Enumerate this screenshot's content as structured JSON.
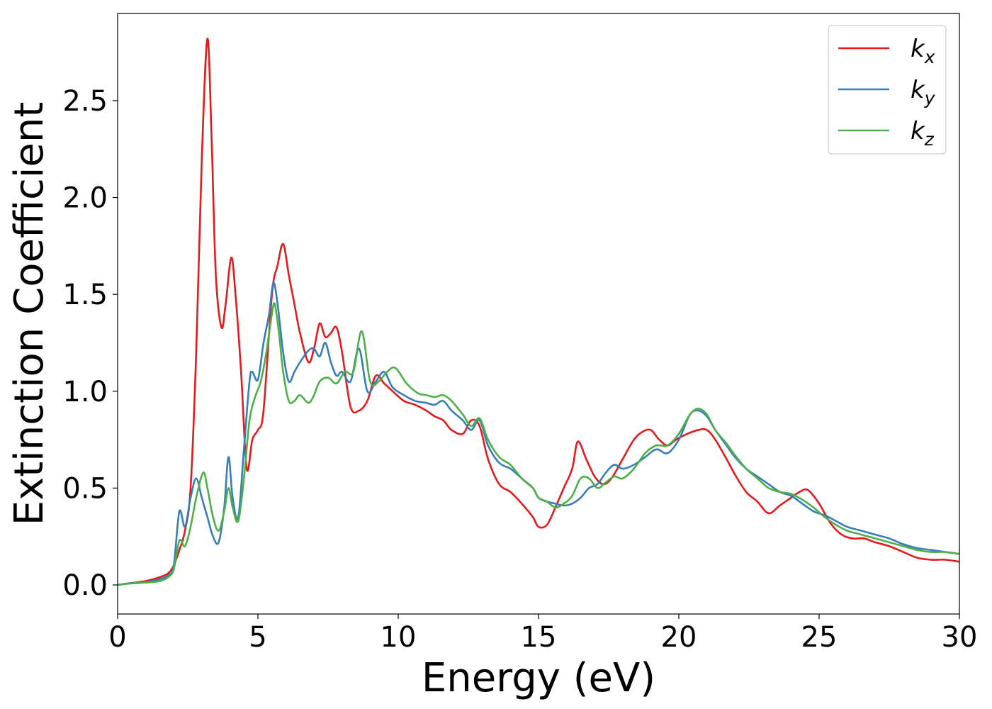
{
  "chart_data": {
    "type": "line",
    "xlabel": "Energy (eV)",
    "ylabel": "Extinction Coefficient",
    "xlim": [
      0,
      30
    ],
    "ylim": [
      -0.15,
      2.95
    ],
    "xticks": [
      "0",
      "5",
      "10",
      "15",
      "20",
      "25",
      "30"
    ],
    "yticks": [
      "0.0",
      "0.5",
      "1.0",
      "1.5",
      "2.0",
      "2.5"
    ],
    "grid": false,
    "legend_position": "top-right",
    "series": [
      {
        "name": "k",
        "subscript": "x",
        "color": "#e41a1c",
        "x": [
          0,
          0.5,
          1.0,
          1.5,
          1.8,
          2.0,
          2.2,
          2.4,
          2.6,
          2.8,
          3.0,
          3.2,
          3.35,
          3.5,
          3.7,
          3.85,
          4.05,
          4.2,
          4.4,
          4.6,
          4.8,
          5.0,
          5.2,
          5.5,
          5.7,
          5.9,
          6.1,
          6.3,
          6.5,
          6.8,
          7.0,
          7.2,
          7.4,
          7.6,
          7.8,
          8.0,
          8.3,
          8.6,
          8.9,
          9.2,
          9.5,
          9.8,
          10.2,
          10.6,
          11.0,
          11.3,
          11.6,
          11.9,
          12.3,
          12.6,
          12.9,
          13.2,
          13.6,
          14.0,
          14.4,
          14.8,
          15.0,
          15.3,
          15.6,
          15.9,
          16.2,
          16.4,
          16.7,
          17.0,
          17.3,
          17.6,
          18.0,
          18.4,
          18.7,
          19.0,
          19.3,
          19.6,
          19.9,
          20.3,
          20.7,
          21.0,
          21.3,
          21.7,
          22.0,
          22.4,
          22.8,
          23.2,
          23.6,
          24.0,
          24.3,
          24.6,
          25.0,
          25.4,
          25.8,
          26.2,
          26.6,
          27.0,
          27.5,
          28.0,
          28.5,
          29.0,
          29.5,
          30.0
        ],
        "y": [
          0.0,
          0.01,
          0.02,
          0.04,
          0.06,
          0.1,
          0.18,
          0.28,
          0.5,
          1.2,
          2.2,
          2.82,
          2.3,
          1.6,
          1.33,
          1.45,
          1.69,
          1.5,
          1.1,
          0.6,
          0.75,
          0.8,
          0.9,
          1.5,
          1.65,
          1.76,
          1.6,
          1.45,
          1.3,
          1.15,
          1.22,
          1.35,
          1.28,
          1.3,
          1.33,
          1.2,
          0.92,
          0.9,
          0.95,
          1.08,
          1.04,
          1.0,
          0.95,
          0.93,
          0.9,
          0.87,
          0.85,
          0.8,
          0.78,
          0.85,
          0.82,
          0.65,
          0.52,
          0.48,
          0.42,
          0.35,
          0.3,
          0.31,
          0.4,
          0.5,
          0.6,
          0.74,
          0.65,
          0.56,
          0.52,
          0.55,
          0.65,
          0.75,
          0.79,
          0.8,
          0.75,
          0.72,
          0.75,
          0.78,
          0.8,
          0.8,
          0.75,
          0.65,
          0.57,
          0.48,
          0.43,
          0.37,
          0.41,
          0.45,
          0.48,
          0.49,
          0.42,
          0.32,
          0.26,
          0.24,
          0.24,
          0.22,
          0.2,
          0.17,
          0.14,
          0.13,
          0.13,
          0.12
        ]
      },
      {
        "name": "k",
        "subscript": "y",
        "color": "#377eb8",
        "x": [
          0,
          0.5,
          1.0,
          1.5,
          1.8,
          2.0,
          2.2,
          2.4,
          2.6,
          2.8,
          3.0,
          3.2,
          3.4,
          3.6,
          3.8,
          3.95,
          4.1,
          4.3,
          4.5,
          4.7,
          4.8,
          5.0,
          5.2,
          5.4,
          5.55,
          5.7,
          5.9,
          6.1,
          6.3,
          6.5,
          6.8,
          7.0,
          7.2,
          7.4,
          7.6,
          7.8,
          8.0,
          8.3,
          8.6,
          8.9,
          9.2,
          9.5,
          9.8,
          10.2,
          10.6,
          11.0,
          11.3,
          11.6,
          11.9,
          12.3,
          12.6,
          12.9,
          13.2,
          13.6,
          14.0,
          14.4,
          14.8,
          15.0,
          15.3,
          15.6,
          15.9,
          16.2,
          16.5,
          16.8,
          17.1,
          17.4,
          17.7,
          18.0,
          18.4,
          18.8,
          19.2,
          19.6,
          20.0,
          20.4,
          20.7,
          21.0,
          21.3,
          21.7,
          22.0,
          22.4,
          22.8,
          23.2,
          23.6,
          24.0,
          24.4,
          24.8,
          25.2,
          25.6,
          26.0,
          26.5,
          27.0,
          27.5,
          28.0,
          28.5,
          29.0,
          29.5,
          30.0
        ],
        "y": [
          0.0,
          0.01,
          0.015,
          0.03,
          0.05,
          0.1,
          0.38,
          0.3,
          0.45,
          0.55,
          0.45,
          0.35,
          0.25,
          0.22,
          0.4,
          0.66,
          0.45,
          0.35,
          0.7,
          1.05,
          1.1,
          1.06,
          1.25,
          1.4,
          1.56,
          1.45,
          1.2,
          1.05,
          1.1,
          1.15,
          1.21,
          1.22,
          1.18,
          1.25,
          1.15,
          1.08,
          1.1,
          1.05,
          1.22,
          1.0,
          1.05,
          1.1,
          1.02,
          0.98,
          0.95,
          0.94,
          0.93,
          0.95,
          0.9,
          0.85,
          0.8,
          0.85,
          0.72,
          0.63,
          0.6,
          0.55,
          0.5,
          0.45,
          0.43,
          0.42,
          0.41,
          0.42,
          0.45,
          0.5,
          0.52,
          0.58,
          0.62,
          0.6,
          0.62,
          0.66,
          0.7,
          0.68,
          0.75,
          0.88,
          0.9,
          0.87,
          0.8,
          0.72,
          0.66,
          0.6,
          0.56,
          0.52,
          0.48,
          0.46,
          0.42,
          0.38,
          0.36,
          0.33,
          0.3,
          0.28,
          0.26,
          0.24,
          0.21,
          0.19,
          0.18,
          0.17,
          0.16
        ]
      },
      {
        "name": "k",
        "subscript": "z",
        "color": "#4daf4a",
        "x": [
          0,
          0.5,
          1.0,
          1.5,
          1.8,
          2.0,
          2.2,
          2.4,
          2.6,
          2.8,
          3.05,
          3.2,
          3.4,
          3.6,
          3.8,
          3.95,
          4.1,
          4.3,
          4.5,
          4.7,
          4.9,
          5.1,
          5.3,
          5.5,
          5.6,
          5.75,
          5.9,
          6.1,
          6.3,
          6.5,
          6.8,
          7.0,
          7.2,
          7.5,
          7.8,
          8.1,
          8.4,
          8.7,
          9.0,
          9.3,
          9.6,
          9.9,
          10.3,
          10.7,
          11.0,
          11.3,
          11.6,
          11.9,
          12.3,
          12.6,
          12.9,
          13.2,
          13.6,
          14.0,
          14.4,
          14.8,
          15.0,
          15.3,
          15.6,
          15.9,
          16.2,
          16.5,
          16.8,
          17.1,
          17.4,
          17.7,
          18.0,
          18.4,
          18.8,
          19.2,
          19.6,
          20.0,
          20.4,
          20.7,
          21.0,
          21.3,
          21.7,
          22.0,
          22.4,
          22.8,
          23.2,
          23.6,
          24.0,
          24.4,
          24.8,
          25.2,
          25.6,
          26.0,
          26.5,
          27.0,
          27.5,
          28.0,
          28.5,
          29.0,
          29.5,
          30.0
        ],
        "y": [
          0.0,
          0.008,
          0.012,
          0.02,
          0.04,
          0.08,
          0.23,
          0.2,
          0.3,
          0.45,
          0.58,
          0.5,
          0.35,
          0.28,
          0.38,
          0.5,
          0.4,
          0.33,
          0.55,
          0.85,
          0.97,
          1.05,
          1.2,
          1.4,
          1.45,
          1.3,
          1.1,
          0.95,
          0.95,
          0.98,
          0.94,
          0.98,
          1.05,
          1.07,
          1.04,
          1.1,
          1.1,
          1.31,
          1.05,
          1.05,
          1.1,
          1.12,
          1.04,
          0.99,
          0.98,
          0.97,
          0.98,
          0.95,
          0.88,
          0.82,
          0.86,
          0.75,
          0.66,
          0.62,
          0.55,
          0.5,
          0.45,
          0.43,
          0.4,
          0.42,
          0.46,
          0.55,
          0.55,
          0.5,
          0.53,
          0.56,
          0.55,
          0.6,
          0.68,
          0.72,
          0.72,
          0.78,
          0.88,
          0.91,
          0.88,
          0.8,
          0.73,
          0.67,
          0.6,
          0.55,
          0.5,
          0.48,
          0.47,
          0.44,
          0.4,
          0.35,
          0.31,
          0.28,
          0.26,
          0.24,
          0.22,
          0.2,
          0.18,
          0.17,
          0.17,
          0.16
        ]
      }
    ]
  }
}
